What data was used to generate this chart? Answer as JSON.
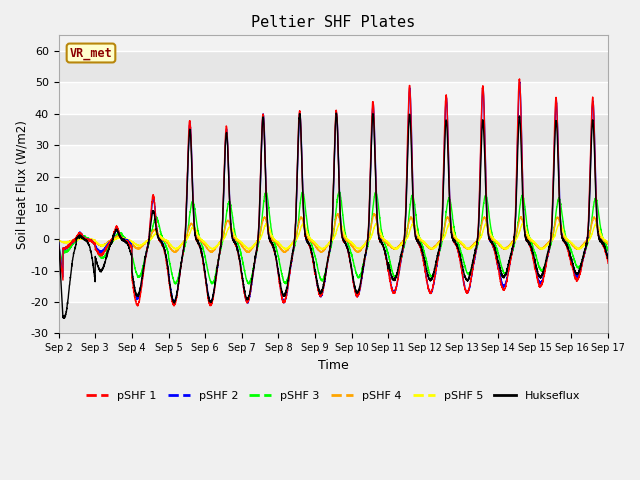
{
  "title": "Peltier SHF Plates",
  "xlabel": "Time",
  "ylabel": "Soil Heat Flux (W/m2)",
  "ylim": [
    -30,
    65
  ],
  "yticks": [
    -30,
    -20,
    -10,
    0,
    10,
    20,
    30,
    40,
    50,
    60
  ],
  "xtick_labels": [
    "Sep 2",
    "Sep 3",
    "Sep 4",
    "Sep 5",
    "Sep 6",
    "Sep 7",
    "Sep 8",
    "Sep 9",
    "Sep 10",
    "Sep 11",
    "Sep 12",
    "Sep 13",
    "Sep 14",
    "Sep 15",
    "Sep 16",
    "Sep 17"
  ],
  "legend_labels": [
    "pSHF 1",
    "pSHF 2",
    "pSHF 3",
    "pSHF 4",
    "pSHF 5",
    "Hukseflux"
  ],
  "colors": [
    "red",
    "blue",
    "lime",
    "orange",
    "yellow",
    "black"
  ],
  "annotation_text": "VR_met",
  "fig_facecolor": "#f0f0f0",
  "axes_facecolor": "#f0f0f0",
  "band_colors": [
    "#e8e8e8",
    "#f8f8f8"
  ],
  "n_days": 15,
  "points_per_day": 288
}
